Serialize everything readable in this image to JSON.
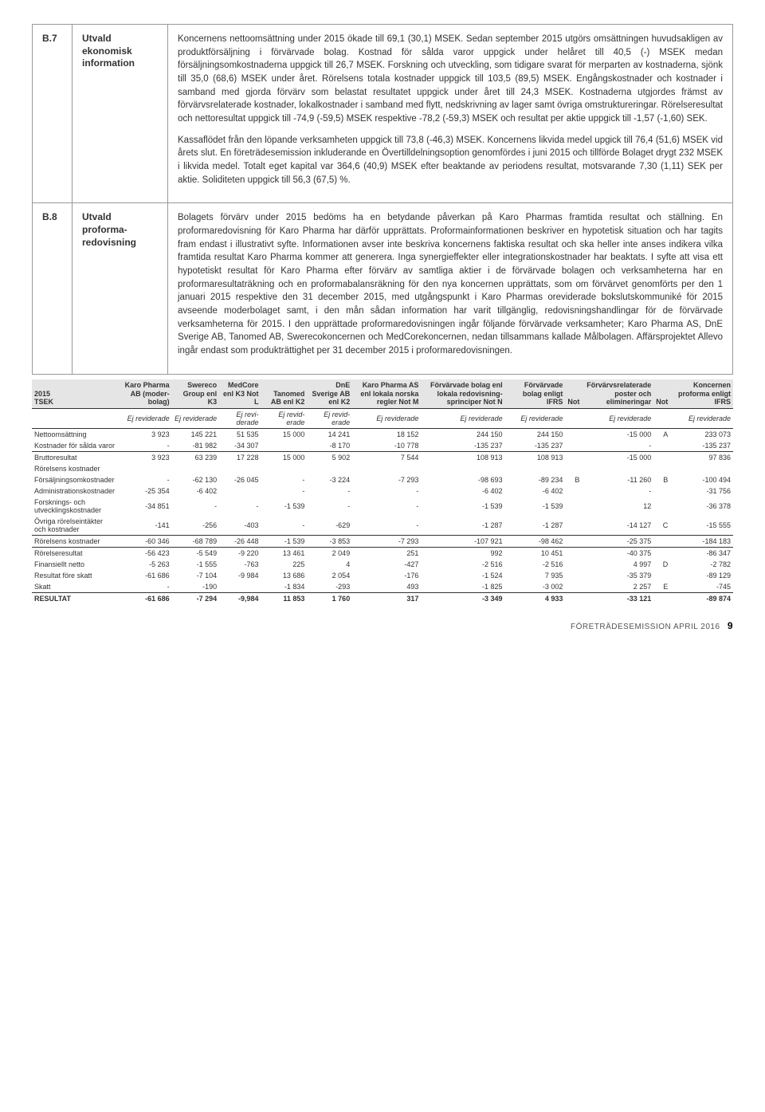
{
  "sections": [
    {
      "code": "B.7",
      "label": "Utvald ekonomisk information",
      "paragraphs": [
        "Koncernens nettoomsättning under 2015 ökade till 69,1 (30,1) MSEK. Sedan september 2015 utgörs omsättningen huvudsakligen av produktförsäljning i förvärvade bolag. Kostnad för sålda varor uppgick under helåret till 40,5 (-) MSEK medan försäljningsomkostnaderna uppgick till 26,7 MSEK. Forskning och utveckling, som tidigare svarat för merparten av kostnaderna, sjönk till 35,0 (68,6) MSEK under året. Rörelsens totala kostnader uppgick till 103,5 (89,5) MSEK. Engångskostnader och kostnader i samband med gjorda förvärv som belastat resultatet uppgick under året till 24,3 MSEK. Kostnaderna utgjordes främst av förvärvsrelaterade kostnader, lokalkostnader i samband med flytt, nedskrivning av lager samt övriga omstruktureringar. Rörelseresultat och nettoresultat uppgick till -74,9 (-59,5) MSEK respektive -78,2 (-59,3) MSEK och resultat per aktie uppgick till -1,57 (-1,60) SEK.",
        "Kassaflödet från den löpande verksamheten uppgick till 73,8 (-46,3) MSEK. Koncernens likvida medel upgick till 76,4 (51,6) MSEK vid årets slut. En företrädesemission inkluderande en Övertilldelningsoption genomfördes i juni 2015 och tillförde Bolaget drygt 232 MSEK i likvida medel. Totalt eget kapital var 364,6 (40,9) MSEK efter beaktande av periodens resultat, motsvarande 7,30 (1,11) SEK per aktie. Soliditeten uppgick till 56,3 (67,5) %."
      ]
    },
    {
      "code": "B.8",
      "label": "Utvald proforma­redovisning",
      "paragraphs": [
        "Bolagets förvärv under 2015 bedöms ha en betydande påverkan på Karo Pharmas framtida resultat och ställning. En proformaredovisning för Karo Pharma har därför upprättats. Proformainformationen beskriver en hypotetisk situation och har tagits fram endast i illustrativt syfte. Informationen avser inte beskriva koncernens faktiska resultat och ska heller inte anses indikera vilka framtida resultat Karo Pharma kommer att generera. Inga synergieffekter eller integrationskostnader har beaktats. I syfte att visa ett hypotetiskt resultat för Karo Pharma efter förvärv av samtliga aktier i de förvärvade bolagen och verksamheterna har en proformaresultaträkning och en proformabalansräkning för den nya koncernen upprättats, som om förvärvet genomförts per den 1 januari 2015 respektive den 31 december 2015, med utgångspunkt i Karo Pharmas oreviderade bokslutskommuniké för 2015 avseende moderbolaget samt, i den mån sådan information har varit tillgänglig, redovisningshandlingar för de förvärvade verksamheterna för 2015. I den upprättade proformaredovisningen ingår följande förvärvade verksamheter; Karo Pharma AS, DnE Sverige AB, Tanomed AB, Swerecokoncernen och MedCorekoncernen, nedan tillsammans kallade Målbolagen. Affärsprojektet Allevo ingår endast som produkträttighet per 31 december 2015 i proformaredovisningen."
      ]
    }
  ],
  "table": {
    "title_left": "2015\nTSEK",
    "columns": [
      "Karo Phar­ma AB (moder­bolag)",
      "Swereco Group enl K3",
      "Med­Core enl K3 Not L",
      "Tanomed AB enl K2",
      "DnE Sverige AB enl K2",
      "Karo Pharma AS enl lokala norska regler Not M",
      "Förvär­vade bolag enl lokala redo­visning­sprinciper Not N",
      "Förvärvade bolag enligt IFRS",
      "Not",
      "Förvärvs­relaterade poster och eliminer­ingar",
      "Not",
      "Koncernen proforma enligt IFRS"
    ],
    "audit_row": [
      "Ej revid­erade",
      "Ej revid­erade",
      "Ej revi­derade",
      "Ej revid­erade",
      "Ej revid­erade",
      "Ej revid­erade",
      "Ej revid­erade",
      "Ej revid­erade",
      "",
      "Ej revid­erade",
      "",
      "Ej revid­erade"
    ],
    "rows": [
      {
        "label": "Nettoomsättning",
        "cells": [
          "3 923",
          "145 221",
          "51 535",
          "15 000",
          "14 241",
          "18 152",
          "244 150",
          "244 150",
          "",
          "-15 000",
          "A",
          "233 073"
        ]
      },
      {
        "label": "Kostnader för sålda varor",
        "cells": [
          "-",
          "-81 982",
          "-34 307",
          "",
          "-8 170",
          "-10 778",
          "-135 237",
          "-135 237",
          "",
          "-",
          "",
          "-135 237"
        ],
        "underline": true
      },
      {
        "label": "Bruttoresultat",
        "cells": [
          "3 923",
          "63 239",
          "17 228",
          "15 000",
          "5 902",
          "7 544",
          "108 913",
          "108 913",
          "",
          "-15 000",
          "",
          "97 836"
        ]
      },
      {
        "label": "Rörelsens kostnader",
        "cells": [
          "",
          "",
          "",
          "",
          "",
          "",
          "",
          "",
          "",
          "",
          "",
          ""
        ],
        "section": true
      },
      {
        "label": "Försäljningsom­kostnader",
        "cells": [
          "-",
          "-62 130",
          "-26 045",
          "-",
          "-3 224",
          "-7 293",
          "-98 693",
          "-89 234",
          "B",
          "-11 260",
          "B",
          "-100 494"
        ]
      },
      {
        "label": "Administrations­kostnader",
        "cells": [
          "-25 354",
          "-6 402",
          "",
          "-",
          "-",
          "-",
          "-6 402",
          "-6 402",
          "",
          "-",
          "",
          "-31 756"
        ]
      },
      {
        "label": "Forsknings- och utvecklingskostnader",
        "cells": [
          "-34 851",
          "-",
          "-",
          "-1 539",
          "-",
          "-",
          "-1 539",
          "-1 539",
          "",
          "12",
          "",
          "-36 378"
        ]
      },
      {
        "label": "Övriga rörelseintäkter och kostnader",
        "cells": [
          "-141",
          "-256",
          "-403",
          "-",
          "-629",
          "-",
          "-1 287",
          "-1 287",
          "",
          "-14 127",
          "C",
          "-15 555"
        ],
        "underline": true
      },
      {
        "label": "Rörelsens kostnader",
        "cells": [
          "-60 346",
          "-68 789",
          "-26 448",
          "-1 539",
          "-3 853",
          "-7 293",
          "-107 921",
          "-98 462",
          "",
          "-25 375",
          "",
          "-184 183"
        ],
        "section": true,
        "underline": true
      },
      {
        "label": "Rörelseresultat",
        "cells": [
          "-56 423",
          "-5 549",
          "-9 220",
          "13 461",
          "2 049",
          "251",
          "992",
          "10 451",
          "",
          "-40 375",
          "",
          "-86 347"
        ],
        "section": true
      },
      {
        "label": "Finansiellt netto",
        "cells": [
          "-5 263",
          "-1 555",
          "-763",
          "225",
          "4",
          "-427",
          "-2 516",
          "-2 516",
          "",
          "4 997",
          "D",
          "-2 782"
        ]
      },
      {
        "label": "Resultat före skatt",
        "cells": [
          "-61 686",
          "-7 104",
          "-9 984",
          "13 686",
          "2 054",
          "-176",
          "-1 524",
          "7 935",
          "",
          "-35 379",
          "",
          "-89 129"
        ]
      },
      {
        "label": "Skatt",
        "cells": [
          "-",
          "-190",
          "",
          "-1 834",
          "-293",
          "493",
          "-1 825",
          "-3 002",
          "",
          "2 257",
          "E",
          "-745"
        ],
        "underline": true
      },
      {
        "label": "RESULTAT",
        "cells": [
          "-61 686",
          "-7 294",
          "-9,984",
          "11 853",
          "1 760",
          "317",
          "-3 349",
          "4 933",
          "",
          "-33 121",
          "",
          "-89 874"
        ],
        "bold": true
      }
    ]
  },
  "footer": {
    "text": "FÖRETRÄDESEMISSION APRIL 2016",
    "page": "9"
  }
}
